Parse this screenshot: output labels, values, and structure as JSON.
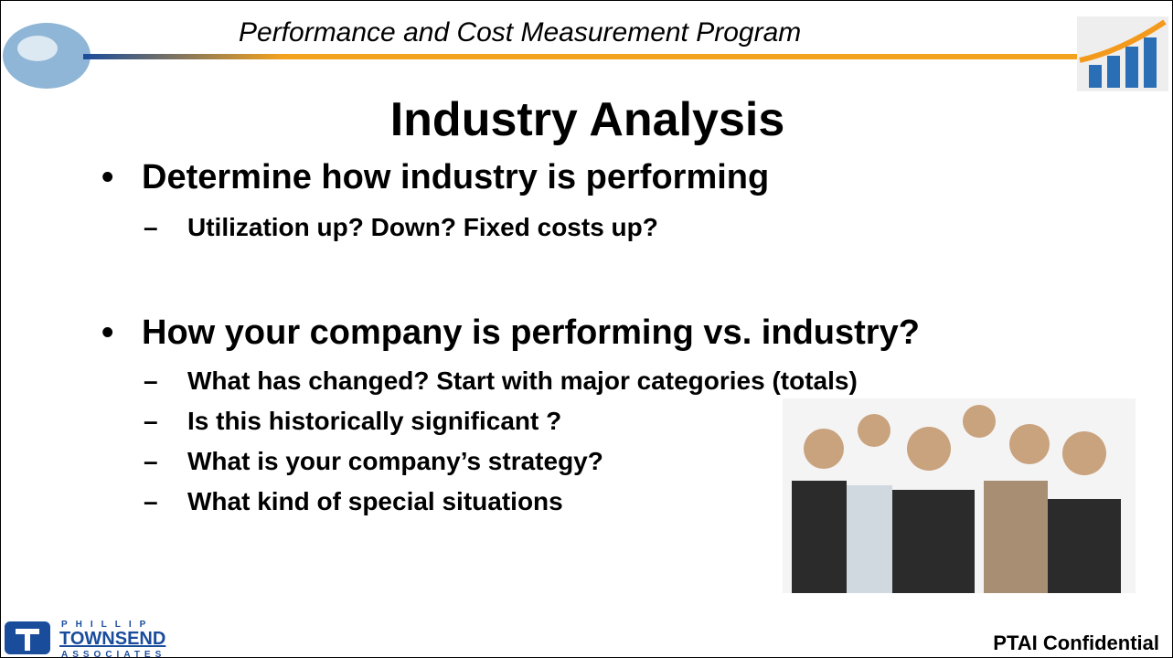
{
  "header": {
    "title": "Performance and Cost Measurement Program"
  },
  "slide": {
    "title": "Industry Analysis",
    "bullets": [
      {
        "text": "Determine how industry is performing",
        "subs": [
          "Utilization up? Down? Fixed costs up?"
        ]
      },
      {
        "text": "How your company is performing vs. industry?",
        "subs": [
          "What has changed? Start with major categories (totals)",
          "Is this historically significant ?",
          "What is your company’s strategy?",
          "What kind of special situations"
        ]
      }
    ]
  },
  "footer": {
    "logo_top": "PHILLIP",
    "logo_main": "TOWNSEND",
    "logo_bottom": "ASSOCIATES",
    "confidential": "PTAI Confidential"
  }
}
